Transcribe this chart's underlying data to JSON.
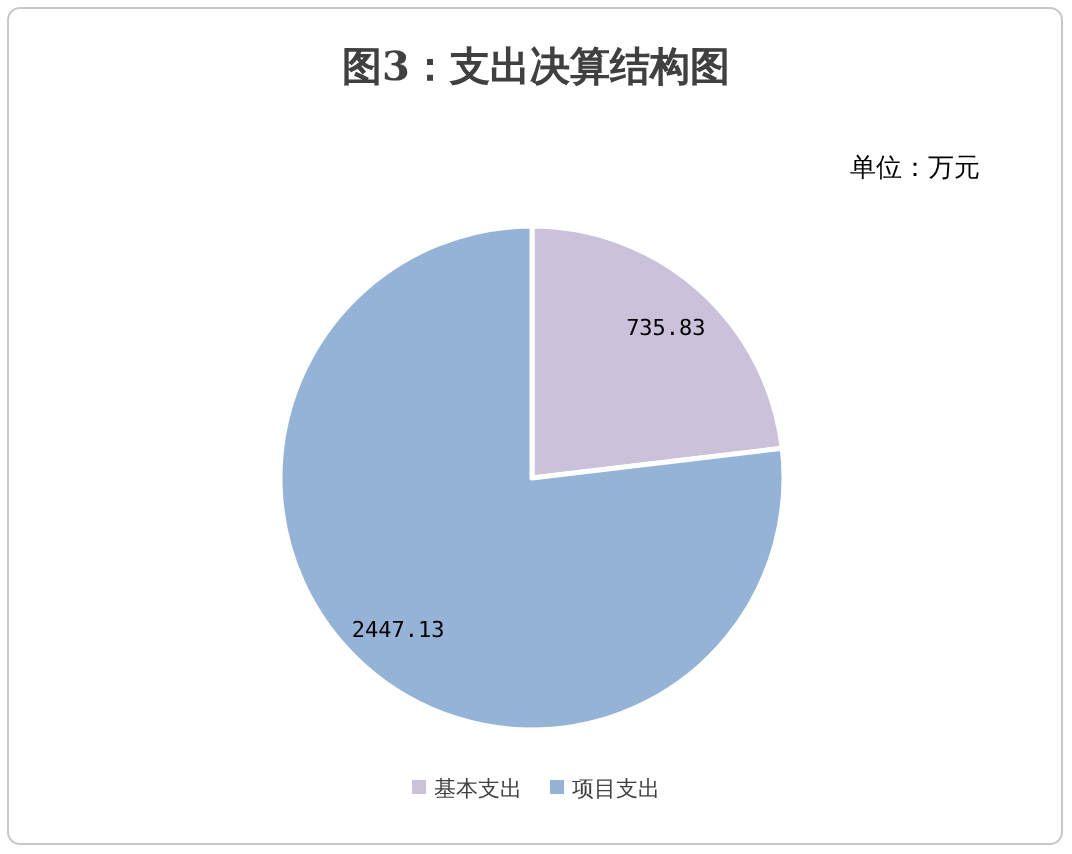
{
  "chart_data": {
    "type": "pie",
    "title": "图3：支出决算结构图",
    "annotations": [
      "单位：万元"
    ],
    "categories": [
      "基本支出",
      "项目支出"
    ],
    "values": [
      735.83,
      2447.13
    ],
    "colors": [
      "#ccc1da",
      "#95b3d7"
    ],
    "data_labels": true,
    "legend": "bottom"
  }
}
